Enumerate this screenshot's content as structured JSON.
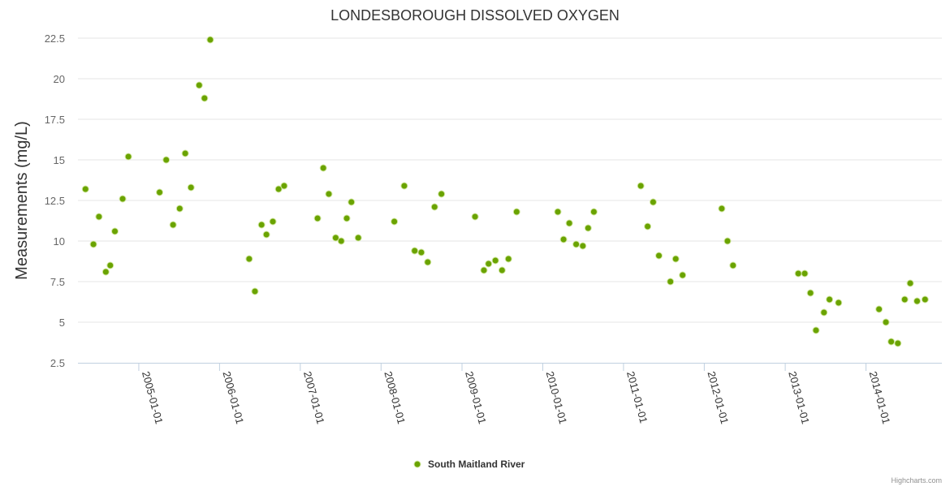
{
  "chart_data": {
    "type": "scatter",
    "title": "LONDESBOROUGH DISSOLVED OXYGEN",
    "ylabel": "Measurements (mg/L)",
    "xlabel": "",
    "ylim": [
      2.5,
      22.5
    ],
    "yticks": [
      "2.5",
      "5",
      "7.5",
      "10",
      "12.5",
      "15",
      "17.5",
      "20",
      "22.5"
    ],
    "xlim": [
      "2004-04-01",
      "2014-12-10"
    ],
    "xticks": [
      "2005-01-01",
      "2006-01-01",
      "2007-01-01",
      "2008-01-01",
      "2009-01-01",
      "2010-01-01",
      "2011-01-01",
      "2012-01-01",
      "2013-01-01",
      "2014-01-01"
    ],
    "grid": true,
    "legend_position": "bottom-center",
    "credits": "Highcharts.com",
    "series": [
      {
        "name": "South Maitland River",
        "color": "#6aa300",
        "points": [
          [
            "2004-05-05",
            13.2
          ],
          [
            "2004-06-10",
            9.8
          ],
          [
            "2004-07-05",
            11.5
          ],
          [
            "2004-08-05",
            8.1
          ],
          [
            "2004-08-25",
            8.5
          ],
          [
            "2004-09-15",
            10.6
          ],
          [
            "2004-10-20",
            12.6
          ],
          [
            "2004-11-15",
            15.2
          ],
          [
            "2005-04-05",
            13.0
          ],
          [
            "2005-05-05",
            15.0
          ],
          [
            "2005-06-05",
            11.0
          ],
          [
            "2005-07-05",
            12.0
          ],
          [
            "2005-07-30",
            15.4
          ],
          [
            "2005-08-25",
            13.3
          ],
          [
            "2005-10-01",
            19.6
          ],
          [
            "2005-10-25",
            18.8
          ],
          [
            "2005-11-20",
            22.4
          ],
          [
            "2006-05-15",
            8.9
          ],
          [
            "2006-06-10",
            6.9
          ],
          [
            "2006-07-10",
            11.0
          ],
          [
            "2006-08-01",
            10.4
          ],
          [
            "2006-08-30",
            11.2
          ],
          [
            "2006-09-25",
            13.2
          ],
          [
            "2006-10-20",
            13.4
          ],
          [
            "2007-03-20",
            11.4
          ],
          [
            "2007-04-15",
            14.5
          ],
          [
            "2007-05-10",
            12.9
          ],
          [
            "2007-06-10",
            10.2
          ],
          [
            "2007-07-05",
            10.0
          ],
          [
            "2007-07-30",
            11.4
          ],
          [
            "2007-08-20",
            12.4
          ],
          [
            "2007-09-20",
            10.2
          ],
          [
            "2008-03-01",
            11.2
          ],
          [
            "2008-04-15",
            13.4
          ],
          [
            "2008-06-01",
            9.4
          ],
          [
            "2008-07-01",
            9.3
          ],
          [
            "2008-07-30",
            8.7
          ],
          [
            "2008-08-30",
            12.1
          ],
          [
            "2008-09-30",
            12.9
          ],
          [
            "2009-03-01",
            11.5
          ],
          [
            "2009-04-10",
            8.2
          ],
          [
            "2009-05-01",
            8.6
          ],
          [
            "2009-06-01",
            8.8
          ],
          [
            "2009-07-01",
            8.2
          ],
          [
            "2009-07-30",
            8.9
          ],
          [
            "2009-09-05",
            11.8
          ],
          [
            "2010-03-10",
            11.8
          ],
          [
            "2010-04-05",
            10.1
          ],
          [
            "2010-05-01",
            11.1
          ],
          [
            "2010-06-01",
            9.8
          ],
          [
            "2010-07-01",
            9.7
          ],
          [
            "2010-07-25",
            10.8
          ],
          [
            "2010-08-20",
            11.8
          ],
          [
            "2011-03-20",
            13.4
          ],
          [
            "2011-04-20",
            10.9
          ],
          [
            "2011-05-15",
            12.4
          ],
          [
            "2011-06-10",
            9.1
          ],
          [
            "2011-08-01",
            7.5
          ],
          [
            "2011-08-25",
            8.9
          ],
          [
            "2011-09-25",
            7.9
          ],
          [
            "2012-03-20",
            12.0
          ],
          [
            "2012-04-15",
            10.0
          ],
          [
            "2012-05-10",
            8.5
          ],
          [
            "2013-03-01",
            8.0
          ],
          [
            "2013-03-30",
            8.0
          ],
          [
            "2013-04-25",
            6.8
          ],
          [
            "2013-05-20",
            4.5
          ],
          [
            "2013-06-25",
            5.6
          ],
          [
            "2013-07-20",
            6.4
          ],
          [
            "2013-08-30",
            6.2
          ],
          [
            "2014-03-01",
            5.8
          ],
          [
            "2014-04-01",
            5.0
          ],
          [
            "2014-04-25",
            3.8
          ],
          [
            "2014-05-25",
            3.7
          ],
          [
            "2014-06-25",
            6.4
          ],
          [
            "2014-07-20",
            7.4
          ],
          [
            "2014-08-20",
            6.3
          ],
          [
            "2014-09-25",
            6.4
          ]
        ]
      }
    ]
  }
}
